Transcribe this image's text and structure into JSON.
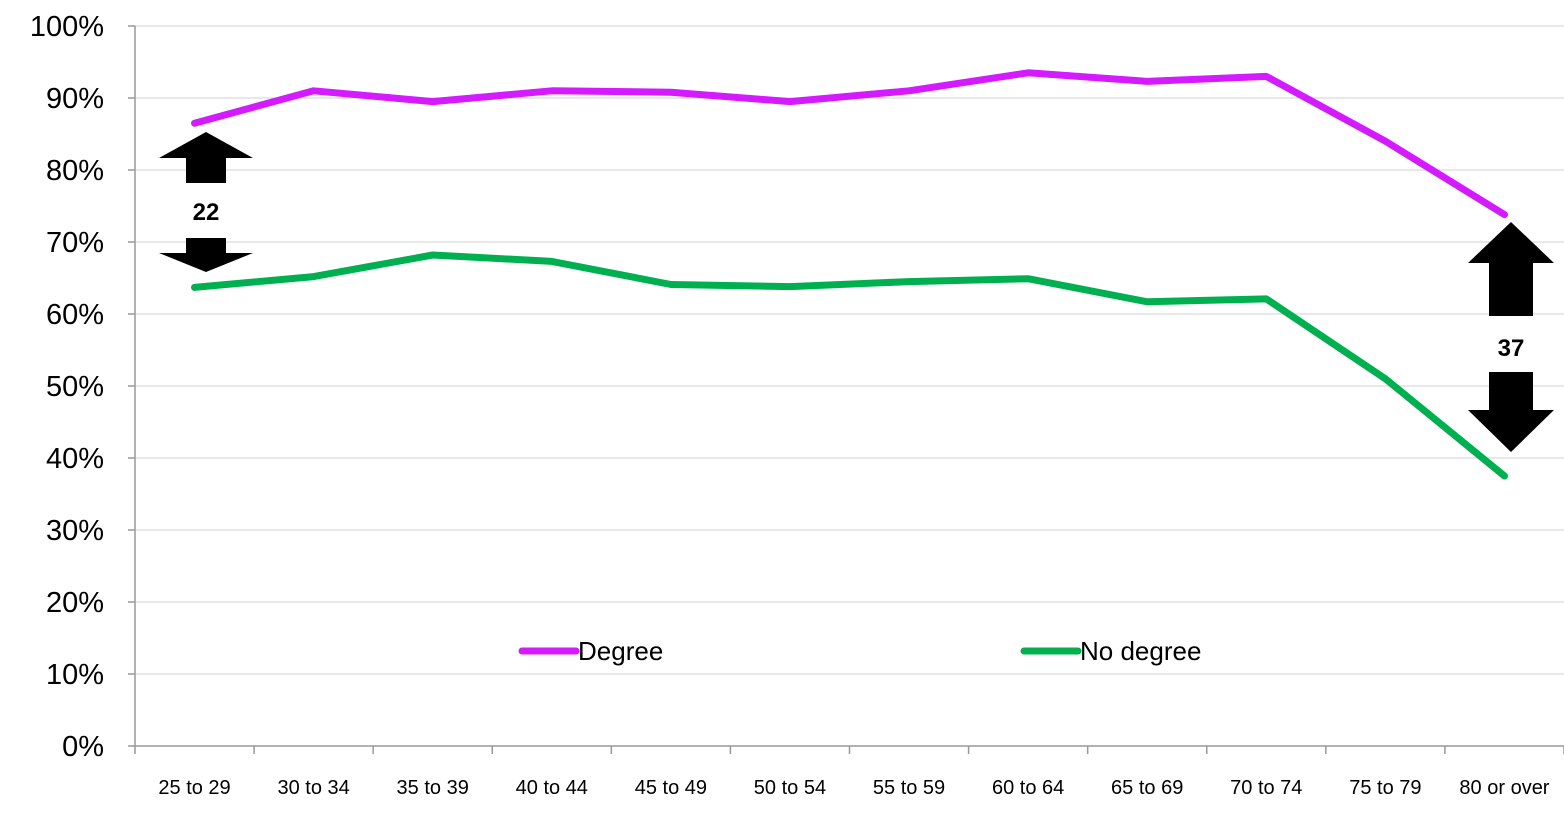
{
  "chart_data": {
    "type": "line",
    "title": "",
    "xlabel": "",
    "ylabel": "",
    "categories": [
      "25 to 29",
      "30 to 34",
      "35 to 39",
      "40 to 44",
      "45 to 49",
      "50 to 54",
      "55 to 59",
      "60 to 64",
      "65 to 69",
      "70 to 74",
      "75 to 79",
      "80 or over"
    ],
    "ylim": [
      0,
      100
    ],
    "yticks": [
      "0%",
      "10%",
      "20%",
      "30%",
      "40%",
      "50%",
      "60%",
      "70%",
      "80%",
      "90%",
      "100%"
    ],
    "grid": true,
    "legend_position": "inside-lower-center",
    "series": [
      {
        "name": "Degree",
        "color": "#d41aff",
        "values": [
          86.5,
          91,
          89.5,
          91,
          90.8,
          89.5,
          91,
          93.5,
          92.3,
          93,
          84,
          73.8
        ]
      },
      {
        "name": "No degree",
        "color": "#00b050",
        "values": [
          63.7,
          65.2,
          68.2,
          67.3,
          64.1,
          63.8,
          64.5,
          64.9,
          61.7,
          62.1,
          51,
          37.5
        ]
      }
    ],
    "annotations": [
      {
        "text": "22",
        "category": "25 to 29"
      },
      {
        "text": "37",
        "category": "80 or over"
      }
    ]
  }
}
